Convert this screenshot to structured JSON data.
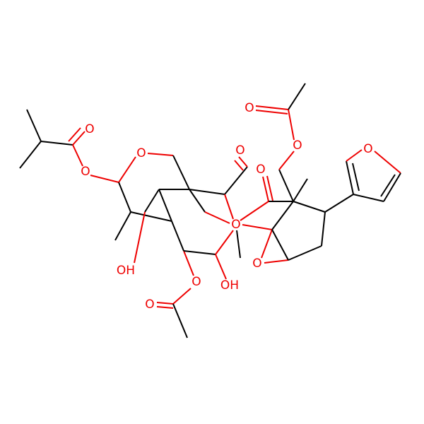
{
  "atoms": [
    "O",
    "O",
    "O",
    "O",
    "O",
    "O",
    "O",
    "O",
    "O",
    "O",
    "OH",
    "OH",
    "O",
    "O"
  ]
}
